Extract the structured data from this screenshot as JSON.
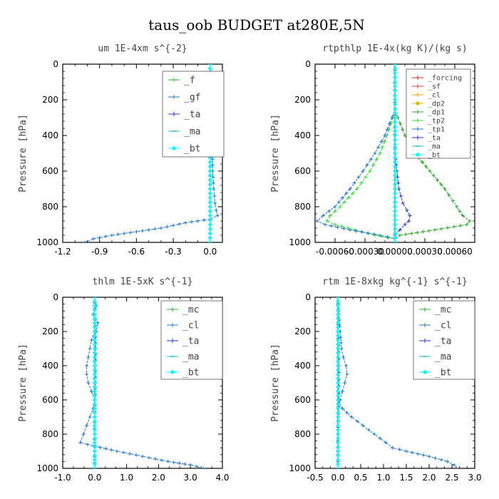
{
  "figure_title": "taus_oob  BUDGET at280E,5N",
  "ylabel": "Pressure [hPa]",
  "chart_data": [
    {
      "type": "line",
      "title": "um  1E-4xm s^{-2}",
      "ylabel": "Pressure [hPa]",
      "ylim": [
        1000,
        0
      ],
      "xlim": [
        -1.2,
        0.1
      ],
      "xticks": [
        -1.2,
        -0.9,
        -0.6,
        -0.3,
        0.0
      ],
      "xtick_labels": [
        "-1.2",
        "-0.9",
        "-0.6",
        "-0.3",
        "0.0"
      ],
      "yticks": [
        0,
        200,
        400,
        600,
        800,
        1000
      ],
      "ytick_labels": [
        "0",
        "200",
        "400",
        "600",
        "800",
        "1000"
      ],
      "legend_position": "top-right",
      "legend": [
        "_f",
        "_gf",
        "_ta",
        "_ma",
        "_bt"
      ],
      "series": [
        {
          "name": "_f",
          "color": "#22bb22",
          "marker": "plus",
          "y": [
            0,
            1000
          ],
          "x": [
            0.0,
            0.0
          ]
        },
        {
          "name": "_gf",
          "color": "#1f77d0",
          "marker": "plus",
          "y": [
            0,
            50,
            100,
            200,
            300,
            400,
            500,
            600,
            700,
            780,
            820,
            850,
            870,
            890,
            920,
            940,
            960,
            980,
            1000
          ],
          "x": [
            0.0,
            0.01,
            0.01,
            0.01,
            0.01,
            0.01,
            0.02,
            0.02,
            0.03,
            0.04,
            0.05,
            0.06,
            0.0,
            -0.2,
            -0.4,
            -0.6,
            -0.8,
            -0.95,
            -1.02
          ]
        },
        {
          "name": "_ta",
          "color": "#2233dd",
          "marker": "plus",
          "y": [
            0,
            1000
          ],
          "x": [
            0.0,
            0.0
          ]
        },
        {
          "name": "_ma",
          "color": "#17becf",
          "marker": "dash",
          "y": [
            0,
            1000
          ],
          "x": [
            0.0,
            0.0
          ]
        },
        {
          "name": "_bt",
          "color": "#00ffff",
          "marker": "dot",
          "y": [
            0,
            1000
          ],
          "x": [
            0.0,
            0.0
          ]
        }
      ]
    },
    {
      "type": "line",
      "title": "rtpthlp  1E-4x(kg K)/(kg s)",
      "ylabel": "Pressure [hPa]",
      "ylim": [
        1000,
        0
      ],
      "xlim": [
        -0.0008,
        0.0008
      ],
      "xticks": [
        -0.0006,
        -0.0003,
        0.0,
        0.0003,
        0.0006
      ],
      "xtick_labels": [
        "-0.00060",
        "-0.00030",
        "0.00000",
        "0.00030",
        "0.00060"
      ],
      "yticks": [
        0,
        200,
        400,
        600,
        800,
        1000
      ],
      "ytick_labels": [
        "0",
        "200",
        "400",
        "600",
        "800",
        "1000"
      ],
      "legend_position": "top-right",
      "legend": [
        "_forcing",
        "_sf",
        "_cl",
        "_dp2",
        "_dp1",
        "_tp2",
        "_tp1",
        "_ta",
        "_ma",
        "_bt"
      ],
      "series": [
        {
          "name": "_forcing",
          "color": "#dd2222",
          "marker": "plus",
          "y": [
            0,
            1000
          ],
          "x": [
            0.0,
            0.0
          ]
        },
        {
          "name": "_sf",
          "color": "#dd4422",
          "marker": "plus",
          "y": [
            0,
            1000
          ],
          "x": [
            0.0,
            0.0
          ]
        },
        {
          "name": "_cl",
          "color": "#ff9900",
          "marker": "plus",
          "y": [
            0,
            1000
          ],
          "x": [
            0.0,
            0.0
          ]
        },
        {
          "name": "_dp2",
          "color": "#ddbb00",
          "marker": "dot",
          "y": [
            0,
            1000
          ],
          "x": [
            0.0,
            0.0
          ]
        },
        {
          "name": "_dp1",
          "color": "#22aa22",
          "marker": "plus",
          "y": [
            250,
            300,
            400,
            500,
            600,
            700,
            800,
            850,
            880,
            900,
            930,
            960,
            980,
            1000
          ],
          "x": [
            0.0,
            3e-05,
            0.0001,
            0.0002,
            0.00035,
            0.0005,
            0.00062,
            0.00068,
            0.00075,
            0.00072,
            0.0004,
            5e-05,
            0.0,
            0.0
          ]
        },
        {
          "name": "_tp2",
          "color": "#33dd33",
          "marker": "plus",
          "y": [
            250,
            300,
            400,
            500,
            600,
            700,
            800,
            850,
            880,
            900,
            930,
            960,
            980,
            1000
          ],
          "x": [
            0.0,
            -2e-05,
            -8e-05,
            -0.00015,
            -0.00025,
            -0.00038,
            -0.00055,
            -0.00065,
            -0.00068,
            -0.0006,
            -0.0004,
            -0.0002,
            0.0,
            0.0
          ]
        },
        {
          "name": "_tp1",
          "color": "#1f77d0",
          "marker": "plus",
          "y": [
            250,
            300,
            400,
            500,
            600,
            700,
            800,
            850,
            880,
            900,
            930,
            960,
            980,
            1000
          ],
          "x": [
            0.0,
            -3e-05,
            -0.0001,
            -0.0002,
            -0.00032,
            -0.00045,
            -0.0006,
            -0.00072,
            -0.00078,
            -0.0007,
            -0.00045,
            -0.00015,
            0.0,
            0.0
          ]
        },
        {
          "name": "_ta",
          "color": "#2233dd",
          "marker": "plus",
          "y": [
            0,
            500,
            600,
            700,
            780,
            820,
            850,
            880,
            900,
            930,
            960,
            1000
          ],
          "x": [
            0.0,
            0.0,
            2e-05,
            4e-05,
            8e-05,
            0.00012,
            0.00015,
            0.00014,
            0.0001,
            5e-05,
            0.0,
            0.0
          ]
        },
        {
          "name": "_ma",
          "color": "#17becf",
          "marker": "dash",
          "y": [
            0,
            1000
          ],
          "x": [
            0.0,
            0.0
          ]
        },
        {
          "name": "_bt",
          "color": "#00ffff",
          "marker": "dot",
          "y": [
            0,
            1000
          ],
          "x": [
            0.0,
            0.0
          ]
        }
      ]
    },
    {
      "type": "line",
      "title": "thlm  1E-5xK s^{-1}",
      "ylabel": "Pressure [hPa]",
      "ylim": [
        1000,
        0
      ],
      "xlim": [
        -1.0,
        4.0
      ],
      "xticks": [
        -1.0,
        0.0,
        1.0,
        2.0,
        3.0,
        4.0
      ],
      "xtick_labels": [
        "-1.0",
        "0.0",
        "1.0",
        "2.0",
        "3.0",
        "4.0"
      ],
      "yticks": [
        0,
        200,
        400,
        600,
        800,
        1000
      ],
      "ytick_labels": [
        "0",
        "200",
        "400",
        "600",
        "800",
        "1000"
      ],
      "legend_position": "top-right",
      "legend": [
        "_mc",
        "_cl",
        "_ta",
        "_ma",
        "_bt"
      ],
      "series": [
        {
          "name": "_mc",
          "color": "#22bb22",
          "marker": "plus",
          "y": [
            0,
            1000
          ],
          "x": [
            0.0,
            0.0
          ]
        },
        {
          "name": "_cl",
          "color": "#1f77d0",
          "marker": "plus",
          "y": [
            0,
            50,
            100,
            150,
            200,
            250,
            300,
            350,
            400,
            450,
            500,
            550,
            600,
            650,
            700,
            750,
            800,
            850,
            870,
            900,
            930,
            960,
            980,
            1000
          ],
          "x": [
            0.0,
            0.05,
            -0.05,
            0.1,
            0.05,
            -0.1,
            -0.15,
            -0.2,
            -0.25,
            -0.25,
            -0.2,
            -0.1,
            0.0,
            -0.05,
            -0.15,
            -0.25,
            -0.35,
            -0.45,
            0.0,
            0.7,
            1.5,
            2.3,
            3.0,
            3.4
          ]
        },
        {
          "name": "_ta",
          "color": "#2233dd",
          "marker": "plus",
          "y": [
            0,
            100,
            200,
            300,
            400,
            500,
            600,
            700,
            800,
            900,
            1000
          ],
          "x": [
            0.0,
            0.0,
            0.02,
            0.03,
            0.02,
            0.02,
            0.01,
            0.0,
            0.0,
            0.0,
            0.0
          ]
        },
        {
          "name": "_ma",
          "color": "#17becf",
          "marker": "dash",
          "y": [
            0,
            1000
          ],
          "x": [
            0.0,
            0.0
          ]
        },
        {
          "name": "_bt",
          "color": "#00ffff",
          "marker": "dot",
          "y": [
            0,
            1000
          ],
          "x": [
            0.0,
            0.0
          ]
        }
      ]
    },
    {
      "type": "line",
      "title": "rtm  1E-8xkg kg^{-1} s^{-1}",
      "ylabel": "Pressure [hPa]",
      "ylim": [
        1000,
        0
      ],
      "xlim": [
        -0.5,
        3.0
      ],
      "xticks": [
        -0.5,
        0.0,
        0.5,
        1.0,
        1.5,
        2.0,
        2.5,
        3.0
      ],
      "xtick_labels": [
        "-0.5",
        "0.0",
        "0.5",
        "1.0",
        "1.5",
        "2.0",
        "2.5",
        "3.0"
      ],
      "yticks": [
        0,
        200,
        400,
        600,
        800,
        1000
      ],
      "ytick_labels": [
        "0",
        "200",
        "400",
        "600",
        "800",
        "1000"
      ],
      "legend_position": "top-right",
      "legend": [
        "_mc",
        "_cl",
        "_ta",
        "_ma",
        "_bt"
      ],
      "series": [
        {
          "name": "_mc",
          "color": "#22bb22",
          "marker": "plus",
          "y": [
            0,
            1000
          ],
          "x": [
            0.0,
            0.0
          ]
        },
        {
          "name": "_cl",
          "color": "#1f77d0",
          "marker": "plus",
          "y": [
            0,
            100,
            200,
            300,
            350,
            400,
            450,
            500,
            550,
            600,
            620,
            650,
            700,
            750,
            800,
            850,
            880,
            900,
            930,
            960,
            980,
            1000
          ],
          "x": [
            0.0,
            0.02,
            0.05,
            0.08,
            0.12,
            0.18,
            0.2,
            0.15,
            0.1,
            0.05,
            0.02,
            0.1,
            0.3,
            0.55,
            0.8,
            1.05,
            1.2,
            1.5,
            2.0,
            2.4,
            2.55,
            2.6
          ]
        },
        {
          "name": "_ta",
          "color": "#2233dd",
          "marker": "plus",
          "y": [
            0,
            200,
            400,
            600,
            800,
            1000
          ],
          "x": [
            0.0,
            0.01,
            0.02,
            0.02,
            0.0,
            0.0
          ]
        },
        {
          "name": "_ma",
          "color": "#17becf",
          "marker": "dash",
          "y": [
            0,
            1000
          ],
          "x": [
            0.0,
            0.0
          ]
        },
        {
          "name": "_bt",
          "color": "#00ffff",
          "marker": "dot",
          "y": [
            0,
            1000
          ],
          "x": [
            0.0,
            0.0
          ]
        }
      ]
    }
  ]
}
